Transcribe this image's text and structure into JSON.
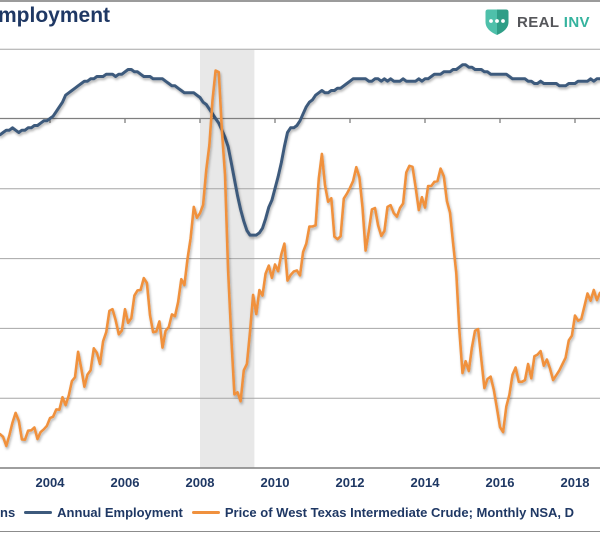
{
  "header": {
    "title": "mployment",
    "brand": {
      "word1": "REAL",
      "word2": "INV",
      "word1_color": "#55565A",
      "word2_color": "#35B39E",
      "shield_color_left": "#4EC0AA",
      "shield_color_right": "#2F9E87"
    }
  },
  "legend": {
    "items": [
      {
        "label": "ns",
        "swatch_color": ""
      },
      {
        "label": "Annual Employment",
        "swatch_color": "#3D5A7C"
      },
      {
        "label": "Price of West Texas Intermediate Crude; Monthly NSA, D",
        "swatch_color": "#F0913E"
      }
    ]
  },
  "chart_data": {
    "type": "line",
    "title_visible_fragment": "mployment",
    "x_axis": {
      "tick_labels": [
        "2004",
        "2006",
        "2008",
        "2010",
        "2012",
        "2014",
        "2016",
        "2018"
      ],
      "tick_years": [
        2004,
        2006,
        2008,
        2010,
        2012,
        2014,
        2016,
        2018
      ],
      "visible_range_years": [
        2002.667,
        2018.667
      ]
    },
    "left_axis": {
      "applies_to": "Annual Employment",
      "unit": "percent, year-over-year",
      "zero_line_drawn_mid_chart": true,
      "value_per_gridline": 3,
      "labels_visible": false
    },
    "right_axis": {
      "applies_to": "WTI crude price",
      "unit": "USD per barrel",
      "bottom_value": 20,
      "gridline_values": [
        140,
        100,
        80,
        60,
        40
      ],
      "value_per_gridline": 20,
      "labels_visible": false
    },
    "grid": "horizontal only",
    "legend_position": "bottom",
    "recession_band": {
      "start_year": 2008.0,
      "end_year": 2009.45,
      "color": "#E8E8E8"
    },
    "series": [
      {
        "name": "Annual Employment",
        "color": "#3D5A7C",
        "axis": "left",
        "start_year": 2002.667,
        "step_months": 1,
        "values": [
          -0.7,
          -0.6,
          -0.5,
          -0.5,
          -0.4,
          -0.5,
          -0.6,
          -0.5,
          -0.5,
          -0.4,
          -0.4,
          -0.3,
          -0.3,
          -0.2,
          -0.1,
          -0.1,
          0.0,
          0.1,
          0.3,
          0.5,
          0.7,
          1.0,
          1.1,
          1.2,
          1.3,
          1.4,
          1.5,
          1.6,
          1.6,
          1.7,
          1.7,
          1.8,
          1.8,
          1.8,
          1.9,
          1.9,
          1.9,
          1.8,
          1.9,
          1.9,
          2.0,
          2.1,
          2.1,
          2.0,
          2.0,
          1.9,
          1.8,
          1.8,
          1.8,
          1.7,
          1.7,
          1.7,
          1.7,
          1.6,
          1.5,
          1.4,
          1.4,
          1.3,
          1.2,
          1.1,
          1.1,
          1.1,
          1.1,
          1.0,
          0.9,
          0.7,
          0.6,
          0.4,
          0.2,
          0.0,
          -0.2,
          -0.5,
          -0.8,
          -1.2,
          -1.9,
          -2.6,
          -3.3,
          -3.9,
          -4.4,
          -4.8,
          -5.0,
          -5.0,
          -5.0,
          -4.9,
          -4.7,
          -4.3,
          -3.8,
          -3.5,
          -3.0,
          -2.5,
          -1.9,
          -1.2,
          -0.6,
          -0.4,
          -0.4,
          -0.3,
          -0.1,
          0.2,
          0.5,
          0.7,
          0.8,
          1.0,
          1.1,
          1.2,
          1.1,
          1.1,
          1.2,
          1.2,
          1.3,
          1.3,
          1.4,
          1.5,
          1.6,
          1.7,
          1.7,
          1.7,
          1.7,
          1.7,
          1.6,
          1.6,
          1.7,
          1.7,
          1.6,
          1.7,
          1.6,
          1.7,
          1.6,
          1.6,
          1.6,
          1.7,
          1.6,
          1.6,
          1.6,
          1.6,
          1.7,
          1.6,
          1.7,
          1.7,
          1.8,
          1.9,
          1.9,
          1.9,
          2.0,
          2.0,
          2.0,
          2.1,
          2.1,
          2.2,
          2.3,
          2.3,
          2.2,
          2.2,
          2.1,
          2.1,
          2.1,
          2.0,
          2.0,
          1.9,
          1.9,
          1.9,
          1.9,
          1.9,
          1.9,
          1.8,
          1.7,
          1.7,
          1.7,
          1.7,
          1.7,
          1.6,
          1.6,
          1.5,
          1.5,
          1.6,
          1.5,
          1.5,
          1.5,
          1.5,
          1.5,
          1.4,
          1.4,
          1.4,
          1.5,
          1.5,
          1.5,
          1.6,
          1.6,
          1.6,
          1.6,
          1.7,
          1.6,
          1.7,
          1.7
        ]
      },
      {
        "name": "Price of West Texas Intermediate Crude; Monthly NSA, D",
        "color": "#F0913E",
        "axis": "right",
        "start_year": 2002.667,
        "step_months": 1,
        "values": [
          29.7,
          28.9,
          26.3,
          29.4,
          33.0,
          35.8,
          33.5,
          28.2,
          28.1,
          30.7,
          30.8,
          31.6,
          28.3,
          30.3,
          31.1,
          32.1,
          34.3,
          34.7,
          36.8,
          36.7,
          40.3,
          38.0,
          40.8,
          44.9,
          46.0,
          53.3,
          48.5,
          43.3,
          46.8,
          48.0,
          54.3,
          53.0,
          49.8,
          56.3,
          59.0,
          65.0,
          65.5,
          62.4,
          58.3,
          59.4,
          65.5,
          61.6,
          62.9,
          69.4,
          70.9,
          71.0,
          74.4,
          73.0,
          63.8,
          58.9,
          59.1,
          62.0,
          54.5,
          59.3,
          60.4,
          64.0,
          63.5,
          67.5,
          74.1,
          72.4,
          79.9,
          85.8,
          94.8,
          91.7,
          93.0,
          95.4,
          105.5,
          112.6,
          125.4,
          133.9,
          133.4,
          116.7,
          104.1,
          76.6,
          57.3,
          41.1,
          41.7,
          39.1,
          48.0,
          49.8,
          59.0,
          69.6,
          64.1,
          71.0,
          69.4,
          75.7,
          78.0,
          74.5,
          78.3,
          76.4,
          81.2,
          84.3,
          73.7,
          75.3,
          76.3,
          76.6,
          75.2,
          81.9,
          84.3,
          89.2,
          89.2,
          89.5,
          103.0,
          110.0,
          101.0,
          96.3,
          97.3,
          86.3,
          85.6,
          86.4,
          97.2,
          98.6,
          100.3,
          102.2,
          106.2,
          103.3,
          94.7,
          82.3,
          87.9,
          94.1,
          94.5,
          89.5,
          86.5,
          87.9,
          94.8,
          95.3,
          93.0,
          92.0,
          94.5,
          95.8,
          104.7,
          106.6,
          106.3,
          100.5,
          93.9,
          97.6,
          94.6,
          100.8,
          100.8,
          102.0,
          102.2,
          105.8,
          103.6,
          96.5,
          93.2,
          84.4,
          75.8,
          59.3,
          47.2,
          50.6,
          47.8,
          54.5,
          59.3,
          59.8,
          51.2,
          42.9,
          45.5,
          46.2,
          42.4,
          37.2,
          31.7,
          30.3,
          37.6,
          41.0,
          46.7,
          48.8,
          44.7,
          44.7,
          45.2,
          49.8,
          45.7,
          52.0,
          52.5,
          53.5,
          49.3,
          51.1,
          48.5,
          45.2,
          46.6,
          48.0,
          49.8,
          51.6,
          56.6,
          57.9,
          63.7,
          62.2,
          62.7,
          66.3,
          70.0,
          67.9,
          71.0,
          68.1,
          70.2
        ]
      }
    ],
    "style": {
      "gridline_color": "#A6A6A6",
      "axis_color": "#7F7F7F",
      "label_color": "#1F3864"
    }
  }
}
